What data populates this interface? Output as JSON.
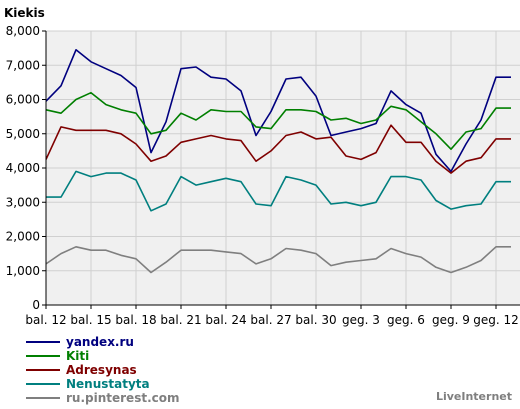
{
  "chart_data": {
    "type": "line",
    "title": "Kiekis",
    "xlabel": "",
    "ylabel": "",
    "ylim": [
      0,
      8000
    ],
    "yticks": [
      0,
      1000,
      2000,
      3000,
      4000,
      5000,
      6000,
      7000,
      8000
    ],
    "ytick_labels": [
      "0",
      "1,000",
      "2,000",
      "3,000",
      "4,000",
      "5,000",
      "6,000",
      "7,000",
      "8,000"
    ],
    "grid": true,
    "legend_position": "bottom-left",
    "x": [
      12,
      13,
      14,
      15,
      16,
      17,
      18,
      19,
      20,
      21,
      22,
      23,
      24,
      25,
      26,
      27,
      28,
      29,
      30,
      31,
      32,
      33,
      34,
      35,
      36,
      37,
      38,
      39,
      40,
      41,
      42,
      43
    ],
    "xtick_labels": [
      {
        "x": 12,
        "label": "bal. 12"
      },
      {
        "x": 15,
        "label": "bal. 15"
      },
      {
        "x": 18,
        "label": "bal. 18"
      },
      {
        "x": 21,
        "label": "bal. 21"
      },
      {
        "x": 24,
        "label": "bal. 24"
      },
      {
        "x": 27,
        "label": "bal. 27"
      },
      {
        "x": 30,
        "label": "bal. 30"
      },
      {
        "x": 33,
        "label": "geg. 3"
      },
      {
        "x": 36,
        "label": "geg. 6"
      },
      {
        "x": 39,
        "label": "geg. 9"
      },
      {
        "x": 42,
        "label": "geg. 12"
      }
    ],
    "series": [
      {
        "name": "yandex.ru",
        "color": "#00007f",
        "values": [
          5950,
          6400,
          7450,
          7100,
          6900,
          6700,
          6350,
          4450,
          5350,
          6900,
          6950,
          6650,
          6600,
          6250,
          4950,
          5650,
          6600,
          6650,
          6100,
          4950,
          5050,
          5150,
          5300,
          6250,
          5850,
          5600,
          4400,
          3900,
          4700,
          5400,
          6650,
          6650
        ]
      },
      {
        "name": "Kiti",
        "color": "#007f00",
        "values": [
          5700,
          5600,
          6000,
          6200,
          5850,
          5700,
          5600,
          5000,
          5100,
          5600,
          5400,
          5700,
          5650,
          5650,
          5200,
          5150,
          5700,
          5700,
          5650,
          5400,
          5450,
          5300,
          5400,
          5800,
          5700,
          5350,
          5000,
          4550,
          5050,
          5150,
          5750,
          5750
        ]
      },
      {
        "name": "Adresynas",
        "color": "#7f0000",
        "values": [
          4250,
          5200,
          5100,
          5100,
          5100,
          5000,
          4700,
          4200,
          4350,
          4750,
          4850,
          4950,
          4850,
          4800,
          4200,
          4500,
          4950,
          5050,
          4850,
          4900,
          4350,
          4250,
          4450,
          5250,
          4750,
          4750,
          4200,
          3850,
          4200,
          4300,
          4850,
          4850
        ]
      },
      {
        "name": "Nenustatyta",
        "color": "#007f7f",
        "values": [
          3150,
          3150,
          3900,
          3750,
          3850,
          3850,
          3650,
          2750,
          2950,
          3750,
          3500,
          3600,
          3700,
          3600,
          2950,
          2900,
          3750,
          3650,
          3500,
          2950,
          3000,
          2900,
          3000,
          3750,
          3750,
          3650,
          3050,
          2800,
          2900,
          2950,
          3600,
          3600
        ]
      },
      {
        "name": "ru.pinterest.com",
        "color": "#7f7f7f",
        "values": [
          1200,
          1500,
          1700,
          1600,
          1600,
          1450,
          1350,
          950,
          1250,
          1600,
          1600,
          1600,
          1550,
          1500,
          1200,
          1350,
          1650,
          1600,
          1500,
          1150,
          1250,
          1300,
          1350,
          1650,
          1500,
          1400,
          1100,
          950,
          1100,
          1300,
          1700,
          1700
        ]
      }
    ]
  },
  "credit": "LiveInternet"
}
